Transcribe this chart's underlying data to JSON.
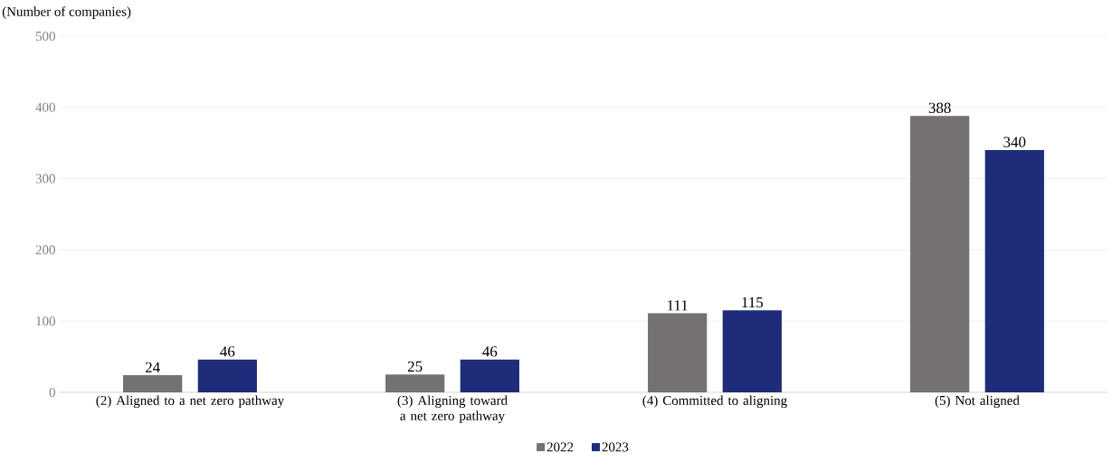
{
  "chart_data": {
    "type": "bar",
    "ylabel": "(Number of companies)",
    "categories": [
      "(2) Aligned to a net zero pathway",
      "(3) Aligning toward a net zero pathway",
      "(4) Committed to aligning",
      "(5) Not aligned"
    ],
    "series": [
      {
        "name": "2022",
        "color": "#767171",
        "values": [
          24,
          25,
          111,
          388
        ]
      },
      {
        "name": "2023",
        "color": "#1f2c7a",
        "values": [
          46,
          46,
          115,
          340
        ]
      }
    ],
    "ylim": [
      0,
      500
    ],
    "yticks": [
      0,
      100,
      200,
      300,
      400,
      500
    ],
    "grid": "y",
    "legend": "bottom",
    "data_labels": true
  }
}
